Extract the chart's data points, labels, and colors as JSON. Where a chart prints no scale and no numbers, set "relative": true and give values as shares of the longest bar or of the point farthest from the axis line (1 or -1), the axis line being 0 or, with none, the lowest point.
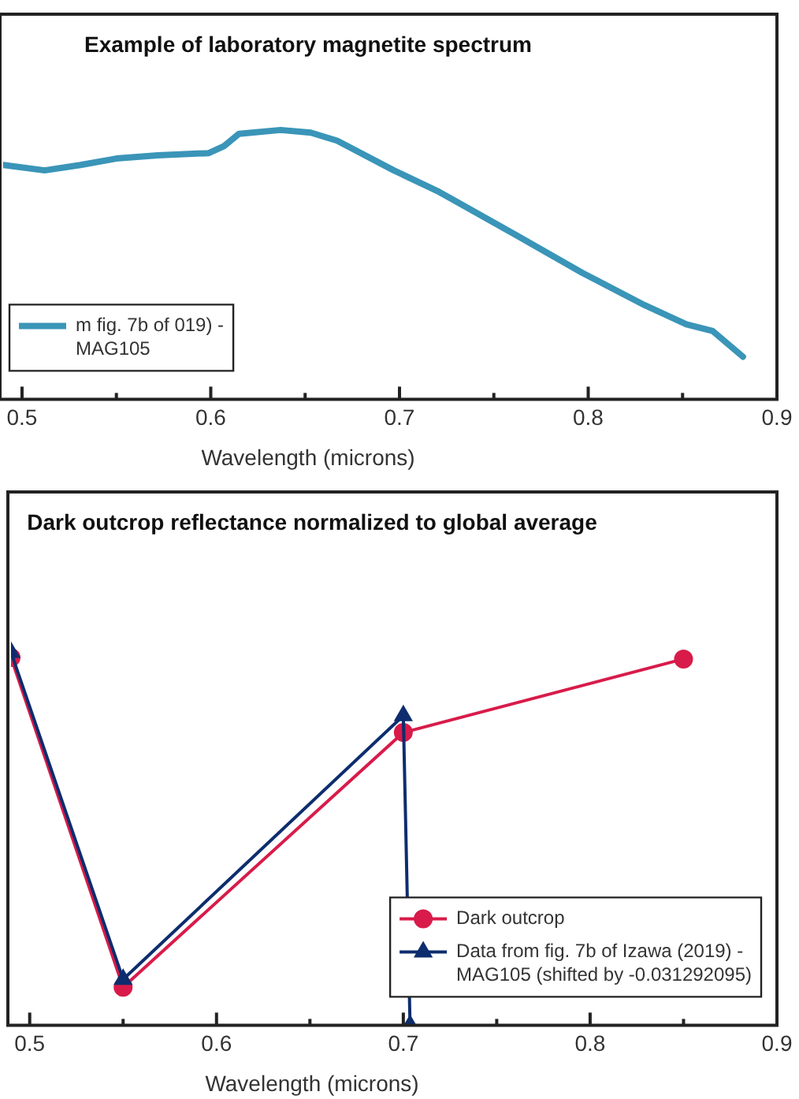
{
  "chart_data": [
    {
      "type": "line",
      "title": "Example of laboratory magnetite spectrum",
      "xlabel": "Wavelength (microns)",
      "relative": true,
      "legend": "bottom left",
      "xlim": [
        0.49,
        0.9
      ],
      "xticks": [
        0.5,
        {
          "value": 0.55,
          "label": null
        },
        0.6,
        {
          "value": 0.65,
          "label": null
        },
        0.7,
        {
          "value": 0.75,
          "label": null
        },
        0.8,
        {
          "value": 0.85,
          "label": null
        },
        0.9
      ],
      "series": [
        {
          "name": "m fig. 7b of 019) - MAG105",
          "color": "#3a95b8",
          "marker": "none",
          "x": [
            0.49,
            0.512,
            0.531,
            0.55,
            0.572,
            0.599,
            0.607,
            0.615,
            0.637,
            0.653,
            0.667,
            0.697,
            0.721,
            0.762,
            0.797,
            0.83,
            0.852,
            0.866,
            0.882
          ],
          "values": [
            0.87,
            0.85,
            0.87,
            0.894,
            0.906,
            0.914,
            0.94,
            0.986,
            1,
            0.99,
            0.96,
            0.85,
            0.77,
            0.609,
            0.469,
            0.349,
            0.278,
            0.253,
            0.158
          ]
        }
      ]
    },
    {
      "type": "line",
      "title": "Dark outcrop reflectance normalized to global average",
      "xlabel": "Wavelength (microns)",
      "relative": true,
      "legend": "bottom right",
      "xlim": [
        0.49,
        0.9
      ],
      "xticks": [
        0.5,
        {
          "value": 0.55,
          "label": null
        },
        0.6,
        {
          "value": 0.65,
          "label": null
        },
        0.7,
        {
          "value": 0.75,
          "label": null
        },
        0.8,
        {
          "value": 0.85,
          "label": null
        },
        0.9
      ],
      "series": [
        {
          "name": "Dark outcrop",
          "color": "#d81b4a",
          "marker": "circle",
          "x": [
            0.49,
            0.55,
            0.7,
            0.85
          ],
          "values": [
            0.986,
            0.102,
            0.785,
            0.982
          ]
        },
        {
          "name": "Data from fig. 7b of Izawa (2019) - MAG105 (shifted by -0.031292095)",
          "color": "#0d2d6e",
          "marker": "triangle",
          "x": [
            0.49,
            0.55,
            0.7,
            0.7036
          ],
          "values": [
            1,
            0.123,
            0.83,
            0
          ]
        }
      ]
    }
  ]
}
